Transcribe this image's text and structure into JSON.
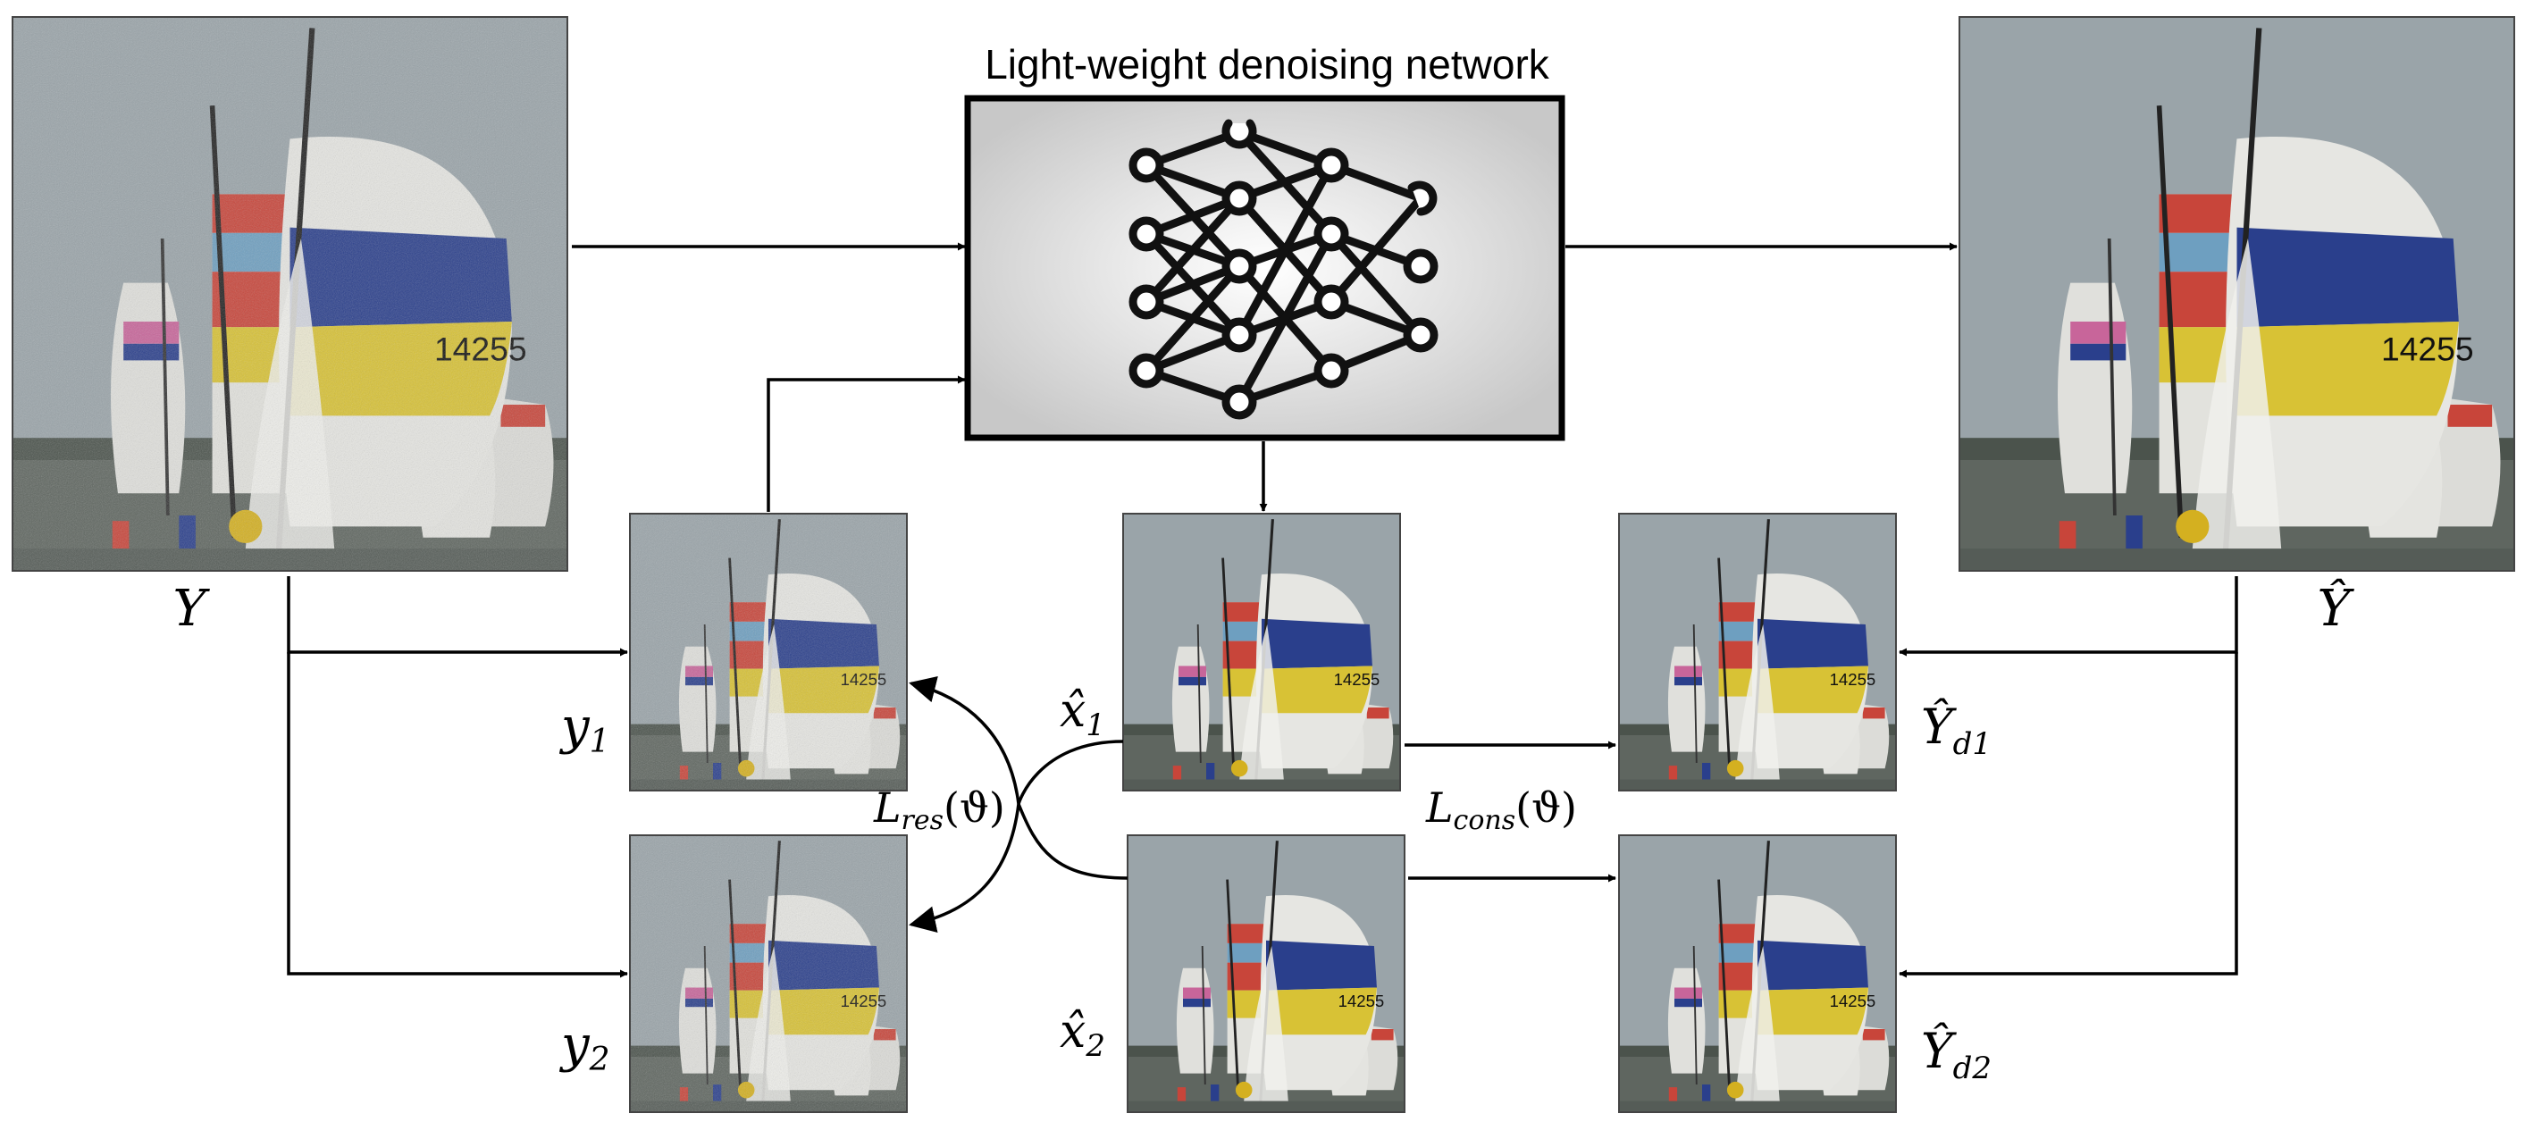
{
  "network": {
    "title": "Light-weight denoising network",
    "icon": "neural-network-icon"
  },
  "images": {
    "noisy_input": {
      "label": "Y",
      "kind": "noisy"
    },
    "denoised_output": {
      "label": "Ŷ",
      "kind": "clean"
    },
    "y1": {
      "label": "y",
      "sub": "1",
      "kind": "noisy"
    },
    "y2": {
      "label": "y",
      "sub": "2",
      "kind": "noisy"
    },
    "x1_hat": {
      "label": "x̂",
      "sub": "1",
      "kind": "clean"
    },
    "x2_hat": {
      "label": "x̂",
      "sub": "2",
      "kind": "clean"
    },
    "yd1_hat": {
      "label": "Ŷ",
      "sub": "d1",
      "kind": "clean"
    },
    "yd2_hat": {
      "label": "Ŷ",
      "sub": "d2",
      "kind": "clean"
    }
  },
  "losses": {
    "residual": {
      "main": "L",
      "sub": "res",
      "arg": "(ϑ)"
    },
    "consistency": {
      "main": "L",
      "sub": "cons",
      "arg": "(ϑ)"
    }
  },
  "colors": {
    "sky_noisy": "#8a938c",
    "sky_clean": "#9aa4a9",
    "sail_white": "#e6e6e2",
    "stripe_blue": "#2a3f8c",
    "stripe_yellow": "#d8c235",
    "stripe_red": "#c8453a",
    "stripe_lightblue": "#6e9fc0",
    "stripe_pink": "#c8659a",
    "water": "#5f6660"
  }
}
